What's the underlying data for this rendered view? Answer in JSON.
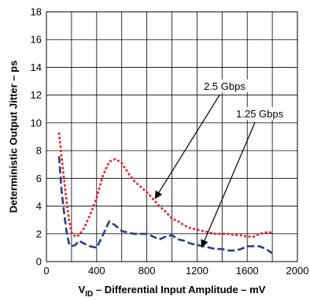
{
  "chart_data": {
    "type": "line",
    "xlabel_parts": {
      "main": "V",
      "sub": "ID",
      "rest": " – Differential Input Amplitude – mV"
    },
    "ylabel": "Deterministic Output Jitter – ps",
    "xlim": [
      0,
      2000
    ],
    "ylim": [
      0,
      18
    ],
    "x_ticks": [
      0,
      400,
      800,
      1200,
      1600,
      2000
    ],
    "y_ticks": [
      0,
      2,
      4,
      6,
      8,
      10,
      12,
      14,
      16,
      18
    ],
    "grid": true,
    "series": [
      {
        "name": "2.5 Gbps",
        "color": "#e8202a",
        "style": "dotted",
        "x": [
          100,
          120,
          140,
          160,
          180,
          200,
          230,
          260,
          300,
          350,
          400,
          450,
          500,
          550,
          600,
          650,
          700,
          750,
          800,
          850,
          900,
          950,
          1000,
          1050,
          1100,
          1150,
          1200,
          1250,
          1300,
          1350,
          1400,
          1450,
          1500,
          1550,
          1600,
          1650,
          1700,
          1750,
          1800
        ],
        "y": [
          9.3,
          7.6,
          6.0,
          4.4,
          3.0,
          2.1,
          1.8,
          1.9,
          2.4,
          3.4,
          4.6,
          6.2,
          7.2,
          7.4,
          7.1,
          6.4,
          5.8,
          5.4,
          5.0,
          4.5,
          4.0,
          3.6,
          3.1,
          2.9,
          2.6,
          2.4,
          2.3,
          2.2,
          2.1,
          2.0,
          2.0,
          2.0,
          1.9,
          1.9,
          1.8,
          1.8,
          2.0,
          2.1,
          2.1
        ]
      },
      {
        "name": "1.25 Gbps",
        "color": "#2b3e8c",
        "style": "dashed",
        "x": [
          100,
          120,
          140,
          160,
          180,
          200,
          230,
          260,
          300,
          350,
          400,
          450,
          500,
          550,
          600,
          650,
          700,
          750,
          800,
          850,
          900,
          950,
          1000,
          1050,
          1100,
          1150,
          1200,
          1250,
          1300,
          1350,
          1400,
          1450,
          1500,
          1550,
          1600,
          1650,
          1700,
          1750,
          1800
        ],
        "y": [
          7.6,
          5.2,
          3.6,
          2.2,
          1.3,
          1.1,
          1.2,
          1.5,
          1.3,
          1.1,
          1.0,
          1.9,
          2.9,
          2.6,
          2.2,
          2.1,
          2.0,
          2.0,
          2.0,
          1.8,
          1.6,
          1.8,
          1.9,
          1.6,
          1.5,
          1.3,
          1.2,
          1.1,
          1.0,
          0.9,
          0.9,
          0.8,
          0.8,
          0.9,
          1.1,
          1.1,
          1.1,
          0.9,
          0.6
        ]
      }
    ],
    "annotations": [
      {
        "text": "2.5 Gbps",
        "target_series": "2.5 Gbps",
        "target": [
          870,
          4.6
        ],
        "text_at": [
          1420,
          12.5
        ]
      },
      {
        "text": "1.25 Gbps",
        "target_series": "1.25 Gbps",
        "target": [
          1240,
          1.1
        ],
        "text_at": [
          1700,
          10.5
        ]
      }
    ]
  }
}
